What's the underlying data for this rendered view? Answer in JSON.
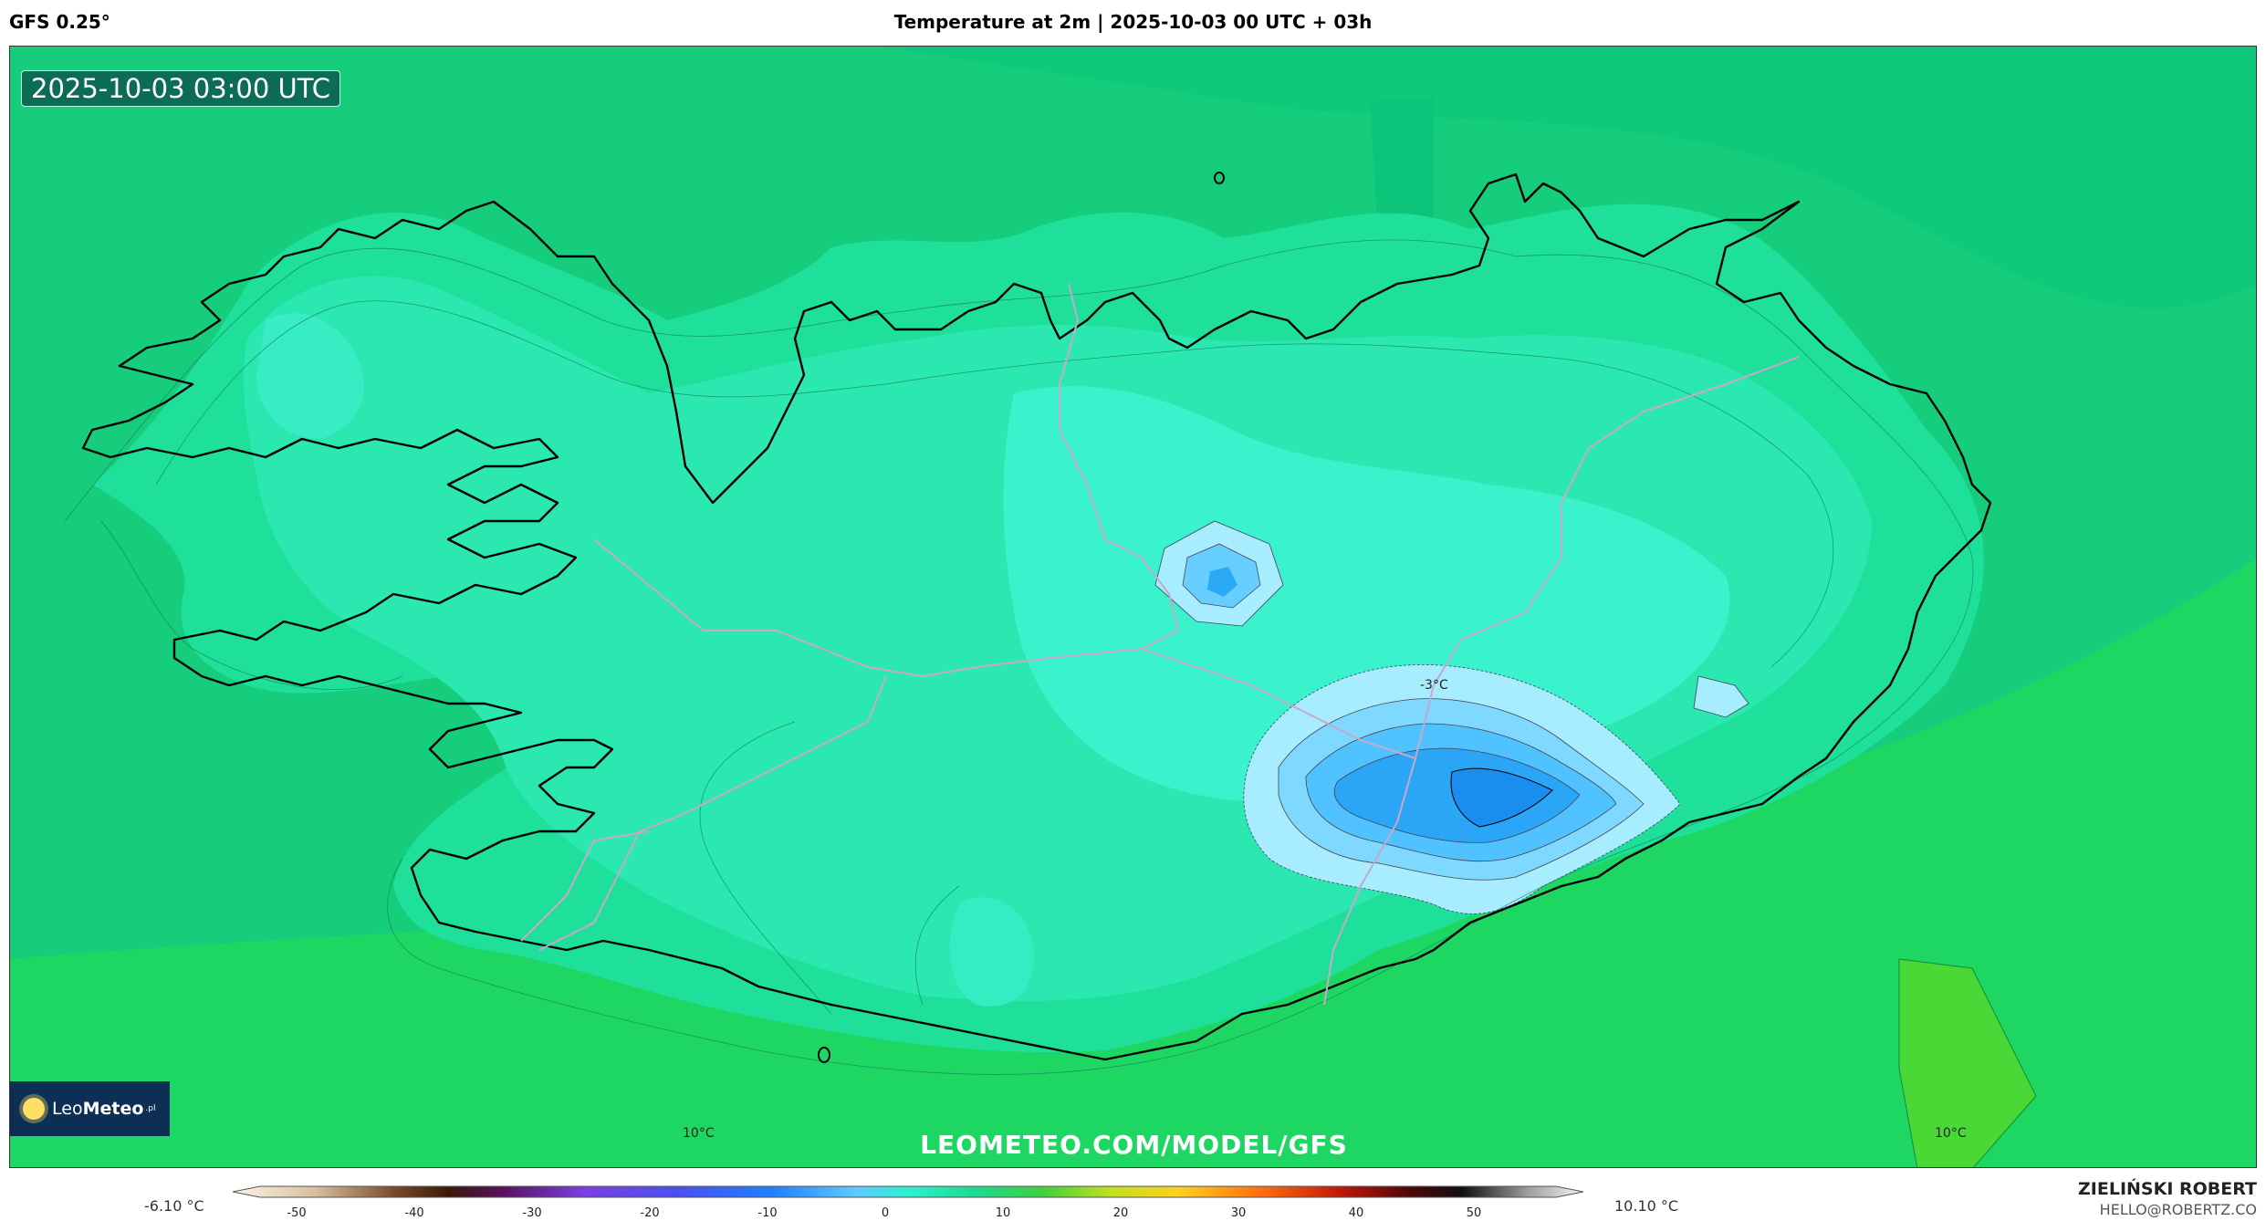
{
  "header": {
    "model": "GFS 0.25°",
    "title": "Temperature at 2m | 2025-10-03 00 UTC + 03h"
  },
  "map": {
    "valid_time": "2025-10-03 03:00 UTC",
    "watermark": "LEOMETEO.COM/MODEL/GFS",
    "labels": {
      "center_min": "-3°C",
      "sw_sea": "10°C",
      "se_sea": "10°C"
    },
    "colors": {
      "sea_warm": "#22d35a",
      "sea": "#15c878",
      "land": "#1ee2a0",
      "land_cool": "#35f0c8",
      "ice_light": "#a8ecff",
      "ice_mid": "#58c8ff",
      "ice_dark": "#1a9cf0",
      "coast": "#000000",
      "roads": "#c7a6c8"
    }
  },
  "logo": {
    "name_light": "Leo",
    "name_bold": "Meteo",
    "suffix": ".pl"
  },
  "colorbar": {
    "min_label": "-6.10 °C",
    "max_label": "10.10 °C",
    "ticks": [
      "-50",
      "-40",
      "-30",
      "-20",
      "-10",
      "0",
      "10",
      "20",
      "30",
      "40",
      "50"
    ]
  },
  "footer": {
    "author": "ZIELIŃSKI ROBERT",
    "email": "HELLO@ROBERTZ.CO"
  }
}
